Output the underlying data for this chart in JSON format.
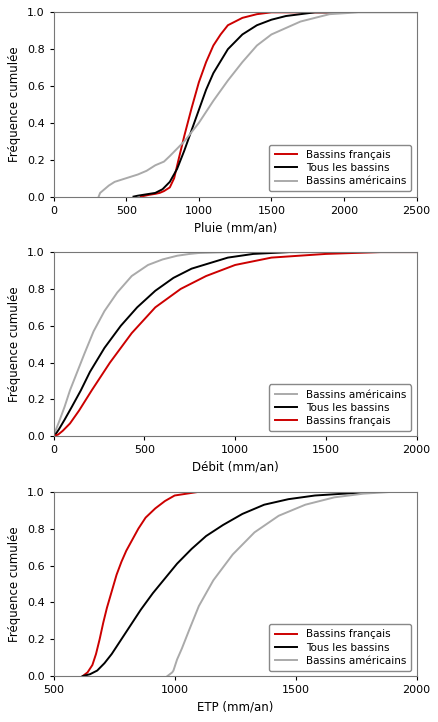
{
  "plot1": {
    "xlabel": "Pluie (mm/an)",
    "xlim": [
      0,
      2500
    ],
    "xticks": [
      0,
      500,
      1000,
      1500,
      2000,
      2500
    ],
    "ylim": [
      0,
      1.0
    ],
    "yticks": [
      0.0,
      0.2,
      0.4,
      0.6,
      0.8,
      1.0
    ],
    "legend_order": [
      "Bassins français",
      "Tous les bassins",
      "Bassins américains"
    ],
    "series": {
      "french": {
        "label": "Bassins français",
        "color": "#cc0000",
        "x": [
          600,
          630,
          660,
          700,
          730,
          760,
          800,
          830,
          860,
          900,
          950,
          1000,
          1050,
          1100,
          1150,
          1200,
          1300,
          1400,
          1500,
          1600,
          1700,
          1800,
          2000
        ],
        "y": [
          0.0,
          0.005,
          0.01,
          0.015,
          0.02,
          0.03,
          0.05,
          0.1,
          0.2,
          0.33,
          0.48,
          0.62,
          0.73,
          0.82,
          0.88,
          0.93,
          0.97,
          0.99,
          1.0,
          1.0,
          1.0,
          1.0,
          1.0
        ]
      },
      "all": {
        "label": "Tous les bassins",
        "color": "#000000",
        "x": [
          550,
          580,
          620,
          660,
          700,
          750,
          800,
          850,
          900,
          950,
          1000,
          1050,
          1100,
          1200,
          1300,
          1400,
          1500,
          1600,
          1700,
          1800,
          2000
        ],
        "y": [
          0.0,
          0.005,
          0.01,
          0.015,
          0.02,
          0.04,
          0.08,
          0.15,
          0.25,
          0.36,
          0.47,
          0.58,
          0.67,
          0.8,
          0.88,
          0.93,
          0.96,
          0.98,
          0.99,
          1.0,
          1.0
        ]
      },
      "american": {
        "label": "Bassins américains",
        "color": "#aaaaaa",
        "x": [
          310,
          320,
          350,
          380,
          420,
          460,
          500,
          540,
          580,
          610,
          640,
          660,
          680,
          700,
          730,
          760,
          800,
          900,
          1000,
          1100,
          1200,
          1300,
          1400,
          1500,
          1700,
          1900,
          2100,
          2300,
          2500
        ],
        "y": [
          0.0,
          0.02,
          0.04,
          0.06,
          0.08,
          0.09,
          0.1,
          0.11,
          0.12,
          0.13,
          0.14,
          0.15,
          0.16,
          0.17,
          0.18,
          0.19,
          0.22,
          0.3,
          0.4,
          0.52,
          0.63,
          0.73,
          0.82,
          0.88,
          0.95,
          0.99,
          1.0,
          1.0,
          1.0
        ]
      }
    }
  },
  "plot2": {
    "xlabel": "Débit (mm/an)",
    "xlim": [
      0,
      2000
    ],
    "xticks": [
      0,
      500,
      1000,
      1500,
      2000
    ],
    "ylim": [
      0,
      1.0
    ],
    "yticks": [
      0.0,
      0.2,
      0.4,
      0.6,
      0.8,
      1.0
    ],
    "legend_order": [
      "Bassins américains",
      "Tous les bassins",
      "Bassins français"
    ],
    "series": {
      "american": {
        "label": "Bassins américains",
        "color": "#aaaaaa",
        "x": [
          0,
          10,
          30,
          60,
          90,
          130,
          170,
          220,
          280,
          350,
          430,
          520,
          600,
          680,
          750,
          800,
          900,
          1000,
          1100,
          1200,
          1400,
          1600,
          2000
        ],
        "y": [
          0.0,
          0.03,
          0.08,
          0.16,
          0.25,
          0.35,
          0.45,
          0.57,
          0.68,
          0.78,
          0.87,
          0.93,
          0.96,
          0.98,
          0.99,
          0.995,
          0.998,
          1.0,
          1.0,
          1.0,
          1.0,
          1.0,
          1.0
        ]
      },
      "all": {
        "label": "Tous les bassins",
        "color": "#000000",
        "x": [
          0,
          10,
          30,
          60,
          100,
          150,
          200,
          280,
          370,
          460,
          560,
          660,
          760,
          860,
          960,
          1100,
          1300,
          1600,
          2000
        ],
        "y": [
          0.0,
          0.01,
          0.04,
          0.09,
          0.16,
          0.25,
          0.35,
          0.48,
          0.6,
          0.7,
          0.79,
          0.86,
          0.91,
          0.94,
          0.97,
          0.99,
          1.0,
          1.0,
          1.0
        ]
      },
      "french": {
        "label": "Bassins français",
        "color": "#cc0000",
        "x": [
          0,
          10,
          25,
          50,
          90,
          140,
          210,
          310,
          430,
          560,
          700,
          840,
          1000,
          1200,
          1500,
          1800,
          2000
        ],
        "y": [
          0.0,
          0.005,
          0.01,
          0.03,
          0.07,
          0.14,
          0.25,
          0.4,
          0.56,
          0.7,
          0.8,
          0.87,
          0.93,
          0.97,
          0.99,
          1.0,
          1.0
        ]
      }
    }
  },
  "plot3": {
    "xlabel": "ETP (mm/an)",
    "xlim": [
      500,
      2000
    ],
    "xticks": [
      500,
      1000,
      1500,
      2000
    ],
    "ylim": [
      0,
      1.0
    ],
    "yticks": [
      0.0,
      0.2,
      0.4,
      0.6,
      0.8,
      1.0
    ],
    "legend_order": [
      "Bassins français",
      "Tous les bassins",
      "Bassins américains"
    ],
    "series": {
      "french": {
        "label": "Bassins français",
        "color": "#cc0000",
        "x": [
          620,
          640,
          660,
          675,
          690,
          705,
          720,
          740,
          760,
          780,
          800,
          825,
          850,
          880,
          920,
          960,
          1000,
          1050,
          1100,
          1150,
          1200,
          1300
        ],
        "y": [
          0.0,
          0.02,
          0.06,
          0.12,
          0.2,
          0.29,
          0.37,
          0.46,
          0.55,
          0.62,
          0.68,
          0.74,
          0.8,
          0.86,
          0.91,
          0.95,
          0.98,
          0.99,
          1.0,
          1.0,
          1.0,
          1.0
        ]
      },
      "all": {
        "label": "Tous les bassins",
        "color": "#000000",
        "x": [
          620,
          650,
          680,
          710,
          740,
          775,
          815,
          860,
          910,
          960,
          1010,
          1070,
          1130,
          1200,
          1280,
          1370,
          1470,
          1580,
          1700,
          1850,
          2000
        ],
        "y": [
          0.0,
          0.01,
          0.03,
          0.07,
          0.12,
          0.19,
          0.27,
          0.36,
          0.45,
          0.53,
          0.61,
          0.69,
          0.76,
          0.82,
          0.88,
          0.93,
          0.96,
          0.98,
          0.99,
          1.0,
          1.0
        ]
      },
      "american": {
        "label": "Bassins américains",
        "color": "#aaaaaa",
        "x": [
          970,
          975,
          980,
          985,
          990,
          995,
          1000,
          1005,
          1010,
          1030,
          1060,
          1100,
          1160,
          1240,
          1330,
          1430,
          1540,
          1660,
          1780,
          1900,
          2000
        ],
        "y": [
          0.0,
          0.005,
          0.01,
          0.015,
          0.02,
          0.03,
          0.05,
          0.07,
          0.09,
          0.15,
          0.25,
          0.38,
          0.52,
          0.66,
          0.78,
          0.87,
          0.93,
          0.97,
          0.99,
          1.0,
          1.0
        ]
      }
    }
  },
  "ylabel": "Fréquence cumulée",
  "linewidth": 1.4,
  "fontsize_label": 8.5,
  "fontsize_tick": 8,
  "fontsize_legend": 7.5
}
